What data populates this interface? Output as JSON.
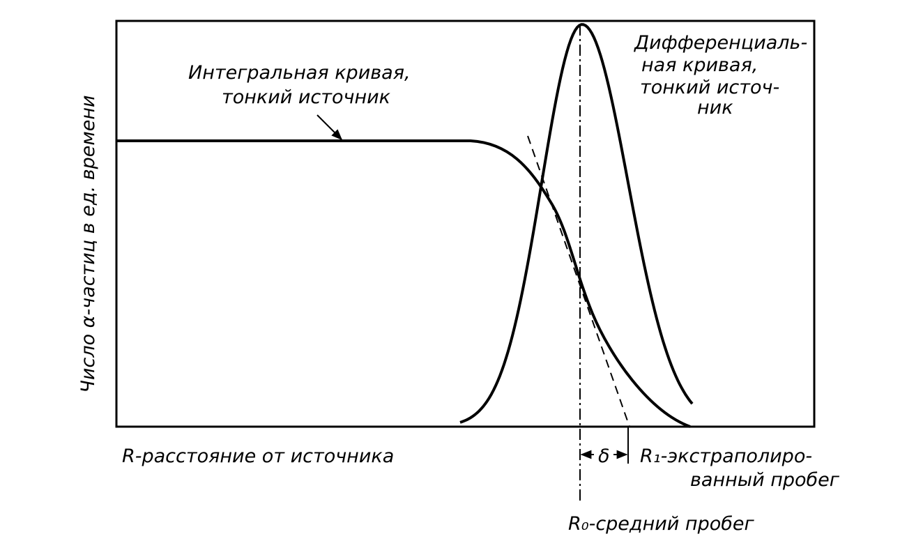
{
  "diagram": {
    "y_axis_label": "Число α-частиц в ед. времени",
    "x_axis_label": "R-расстояние от источника",
    "integral_label": [
      "Интегральная кривая,",
      "тонкий источник"
    ],
    "differential_label": [
      "Дифференциаль-",
      "ная кривая,",
      "тонкий источ-",
      "ник"
    ],
    "delta_label": "δ",
    "r1_label": [
      "R₁-экстраполиро-",
      "ванный пробег"
    ],
    "r0_label": "R₀-средний пробег"
  }
}
